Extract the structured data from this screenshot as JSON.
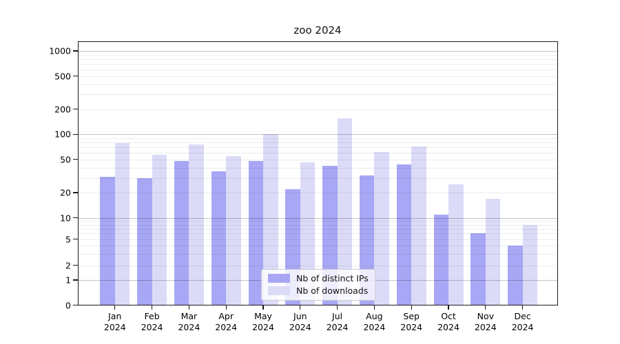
{
  "chart_data": {
    "type": "bar",
    "title": "zoo 2024",
    "categories": [
      "Jan 2024",
      "Feb 2024",
      "Mar 2024",
      "Apr 2024",
      "May 2024",
      "Jun 2024",
      "Jul 2024",
      "Aug 2024",
      "Sep 2024",
      "Oct 2024",
      "Nov 2024",
      "Dec 2024"
    ],
    "x_axis": {
      "months": [
        "Jan",
        "Feb",
        "Mar",
        "Apr",
        "May",
        "Jun",
        "Jul",
        "Aug",
        "Sep",
        "Oct",
        "Nov",
        "Dec"
      ],
      "year_line": "2024"
    },
    "y_axis": {
      "scale": "symlog",
      "ticks": [
        0,
        1,
        2,
        5,
        10,
        20,
        50,
        100,
        200,
        500,
        1000
      ],
      "range": [
        0,
        1200
      ]
    },
    "series": [
      {
        "name": "Nb of distinct IPs",
        "color": "#a7a7f5",
        "values": [
          31,
          30,
          48,
          36,
          48,
          22,
          42,
          32,
          44,
          11,
          6,
          4
        ]
      },
      {
        "name": "Nb of downloads",
        "color": "#dbdbf8",
        "values": [
          78,
          57,
          75,
          55,
          100,
          46,
          157,
          61,
          71,
          25,
          17,
          8
        ]
      }
    ],
    "legend": {
      "position": "lower center",
      "entries": [
        "Nb of distinct IPs",
        "Nb of downloads"
      ]
    },
    "grid": {
      "minor_lines": "log minors 2-9 per decade",
      "major_lines": "powers of 10",
      "minor_color": "#ececec",
      "major_color": "#c4c4c4"
    }
  }
}
